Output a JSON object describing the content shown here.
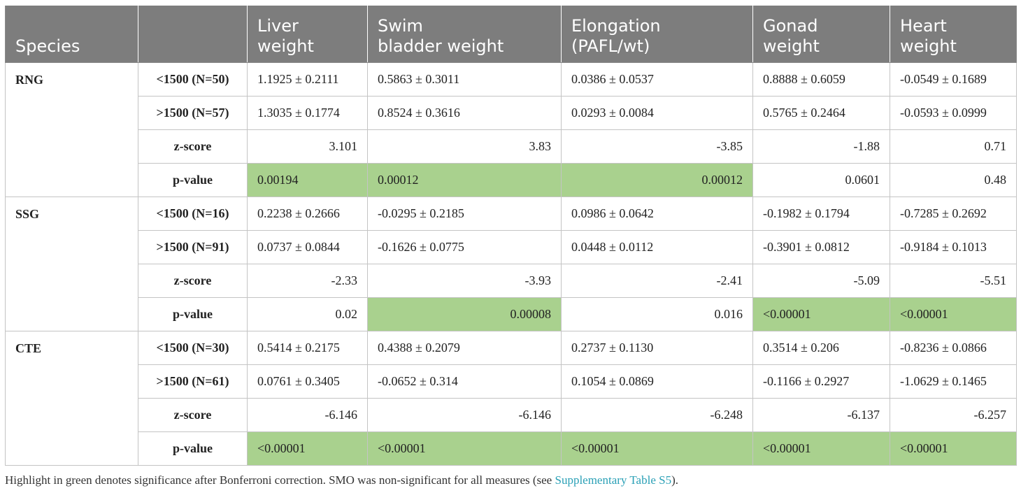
{
  "header": [
    "Species",
    "",
    "Liver weight",
    "Swim bladder weight",
    "Elongation (PAFL/wt)",
    "Gonad weight",
    "Heart weight"
  ],
  "header_lines": [
    [
      "Species"
    ],
    [
      ""
    ],
    [
      "Liver",
      "weight"
    ],
    [
      "Swim",
      "bladder weight"
    ],
    [
      "Elongation",
      "(PAFL/wt)"
    ],
    [
      "Gonad",
      "weight"
    ],
    [
      "Heart",
      "weight"
    ]
  ],
  "highlight_color": "#a9d18e",
  "header_color": "#7d7d7d",
  "groups": [
    {
      "species": "RNG",
      "rows": [
        {
          "label": "<1500 (N=50)",
          "values": [
            "1.1925 ± 0.2111",
            "0.5863 ± 0.3011",
            "0.0386 ± 0.0537",
            "0.8888 ± 0.6059",
            "-0.0549 ± 0.1689"
          ],
          "align": [
            "l",
            "l",
            "l",
            "l",
            "l"
          ],
          "highlight": [
            false,
            false,
            false,
            false,
            false
          ]
        },
        {
          "label": ">1500 (N=57)",
          "values": [
            "1.3035 ± 0.1774",
            "0.8524 ± 0.3616",
            "0.0293 ± 0.0084",
            "0.5765 ± 0.2464",
            "-0.0593 ± 0.0999"
          ],
          "align": [
            "l",
            "l",
            "l",
            "l",
            "l"
          ],
          "highlight": [
            false,
            false,
            false,
            false,
            false
          ]
        },
        {
          "label": "z-score",
          "values": [
            "3.101",
            "3.83",
            "-3.85",
            "-1.88",
            "0.71"
          ],
          "align": [
            "r",
            "r",
            "r",
            "r",
            "r"
          ],
          "highlight": [
            false,
            false,
            false,
            false,
            false
          ]
        },
        {
          "label": "p-value",
          "values": [
            "0.00194",
            "0.00012",
            "0.00012",
            "0.0601",
            "0.48"
          ],
          "align": [
            "l",
            "l",
            "r",
            "r",
            "r"
          ],
          "highlight": [
            true,
            true,
            true,
            false,
            false
          ]
        }
      ]
    },
    {
      "species": "SSG",
      "rows": [
        {
          "label": "<1500 (N=16)",
          "values": [
            "0.2238 ± 0.2666",
            "-0.0295 ± 0.2185",
            "0.0986 ± 0.0642",
            "-0.1982 ± 0.1794",
            "-0.7285 ± 0.2692"
          ],
          "align": [
            "l",
            "l",
            "l",
            "l",
            "l"
          ],
          "highlight": [
            false,
            false,
            false,
            false,
            false
          ]
        },
        {
          "label": ">1500 (N=91)",
          "values": [
            "0.0737 ± 0.0844",
            "-0.1626 ± 0.0775",
            "0.0448 ± 0.0112",
            "-0.3901 ± 0.0812",
            "-0.9184 ± 0.1013"
          ],
          "align": [
            "l",
            "l",
            "l",
            "l",
            "l"
          ],
          "highlight": [
            false,
            false,
            false,
            false,
            false
          ]
        },
        {
          "label": "z-score",
          "values": [
            "-2.33",
            "-3.93",
            "-2.41",
            "-5.09",
            "-5.51"
          ],
          "align": [
            "r",
            "r",
            "r",
            "r",
            "r"
          ],
          "highlight": [
            false,
            false,
            false,
            false,
            false
          ]
        },
        {
          "label": "p-value",
          "values": [
            "0.02",
            "0.00008",
            "0.016",
            "<0.00001",
            "<0.00001"
          ],
          "align": [
            "r",
            "r",
            "r",
            "l",
            "l"
          ],
          "highlight": [
            false,
            true,
            false,
            true,
            true
          ]
        }
      ]
    },
    {
      "species": "CTE",
      "rows": [
        {
          "label": "<1500 (N=30)",
          "values": [
            "0.5414 ± 0.2175",
            "0.4388 ± 0.2079",
            "0.2737 ± 0.1130",
            "0.3514 ± 0.206",
            "-0.8236 ± 0.0866"
          ],
          "align": [
            "l",
            "l",
            "l",
            "l",
            "l"
          ],
          "highlight": [
            false,
            false,
            false,
            false,
            false
          ]
        },
        {
          "label": ">1500 (N=61)",
          "values": [
            "0.0761 ± 0.3405",
            "-0.0652 ± 0.314",
            "0.1054 ± 0.0869",
            "-0.1166 ± 0.2927",
            "-1.0629 ± 0.1465"
          ],
          "align": [
            "l",
            "l",
            "l",
            "l",
            "l"
          ],
          "highlight": [
            false,
            false,
            false,
            false,
            false
          ]
        },
        {
          "label": "z-score",
          "values": [
            "-6.146",
            "-6.146",
            "-6.248",
            "-6.137",
            "-6.257"
          ],
          "align": [
            "r",
            "r",
            "r",
            "r",
            "r"
          ],
          "highlight": [
            false,
            false,
            false,
            false,
            false
          ]
        },
        {
          "label": "p-value",
          "values": [
            "<0.00001",
            "<0.00001",
            "<0.00001",
            "<0.00001",
            "<0.00001"
          ],
          "align": [
            "l",
            "l",
            "l",
            "l",
            "l"
          ],
          "highlight": [
            true,
            true,
            true,
            true,
            true
          ]
        }
      ]
    }
  ],
  "footnote": {
    "text": "Highlight in green denotes significance after Bonferroni correction. SMO was non-significant for all measures (see ",
    "link": "Supplementary Table S5",
    "suffix": ")."
  }
}
